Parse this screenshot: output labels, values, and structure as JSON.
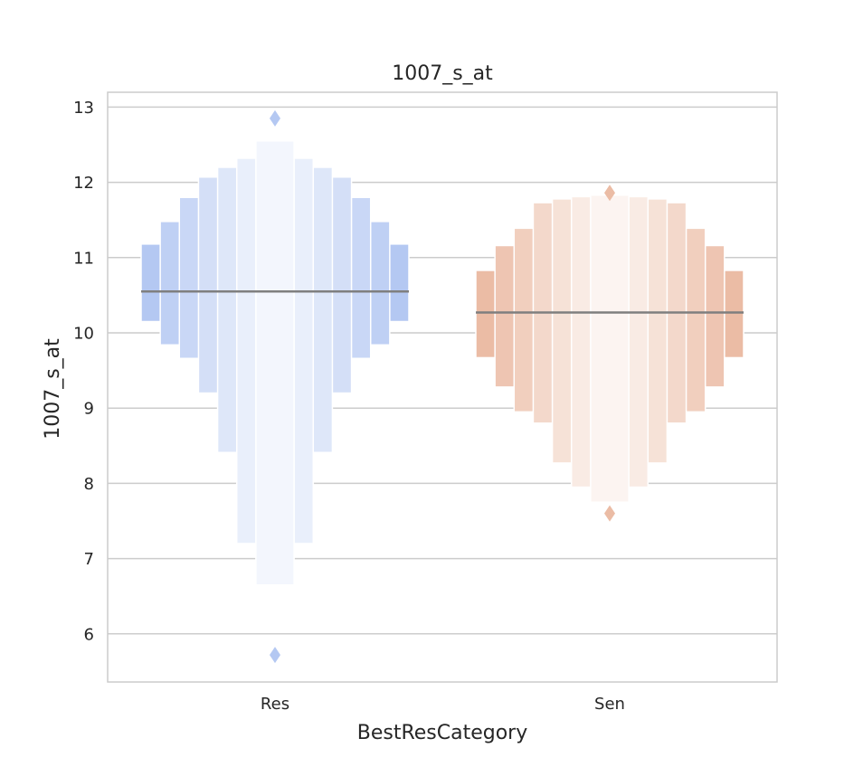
{
  "chart_data": {
    "type": "boxen",
    "title": "1007_s_at",
    "xlabel": "BestResCategory",
    "ylabel": "1007_s_at",
    "ylim": [
      5.35,
      13.2
    ],
    "yticks": [
      6,
      7,
      8,
      9,
      10,
      11,
      12,
      13
    ],
    "grid": true,
    "categories": [
      "Res",
      "Sen"
    ],
    "series": [
      {
        "category": "Res",
        "color": "#b4c8f2",
        "median": 10.55,
        "boxes": [
          {
            "low": 10.15,
            "high": 11.18
          },
          {
            "low": 9.84,
            "high": 11.48
          },
          {
            "low": 9.66,
            "high": 11.8
          },
          {
            "low": 9.2,
            "high": 12.07
          },
          {
            "low": 8.41,
            "high": 12.2
          },
          {
            "low": 7.2,
            "high": 12.32
          },
          {
            "low": 6.65,
            "high": 12.55
          }
        ],
        "outliers": [
          12.85,
          5.72
        ]
      },
      {
        "category": "Sen",
        "color": "#ebbca5",
        "median": 10.27,
        "boxes": [
          {
            "low": 9.67,
            "high": 10.83
          },
          {
            "low": 9.28,
            "high": 11.16
          },
          {
            "low": 8.95,
            "high": 11.39
          },
          {
            "low": 8.8,
            "high": 11.73
          },
          {
            "low": 8.27,
            "high": 11.78
          },
          {
            "low": 7.95,
            "high": 11.81
          },
          {
            "low": 7.75,
            "high": 11.83
          }
        ],
        "outliers": [
          11.86,
          7.6
        ]
      }
    ]
  }
}
